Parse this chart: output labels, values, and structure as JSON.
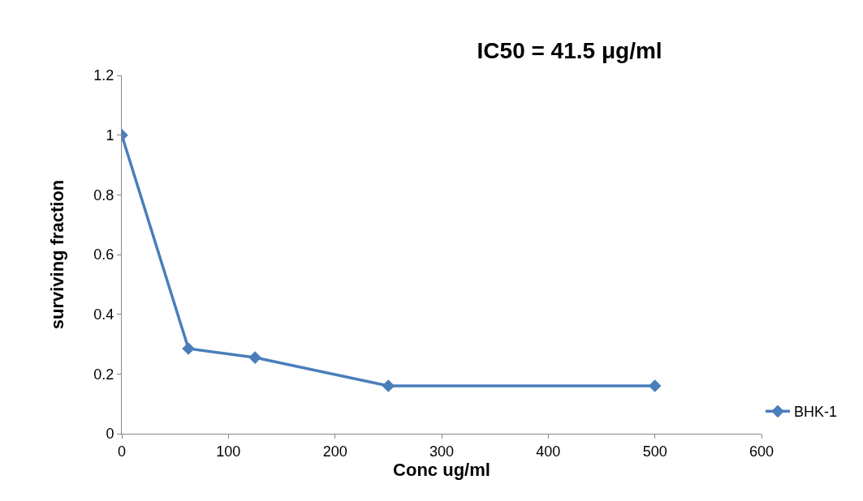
{
  "chart_data": {
    "type": "line",
    "title": "IC50 = 41.5 μg/ml",
    "xlabel": "Conc ug/ml",
    "ylabel": "surviving fraction",
    "x": [
      0,
      62.5,
      125,
      250,
      500
    ],
    "series": [
      {
        "name": "BHK-1",
        "color": "#4a7ebb",
        "values": [
          1,
          0.285,
          0.255,
          0.16,
          0.16
        ]
      }
    ],
    "xlim": [
      0,
      600
    ],
    "xticks": [
      0,
      100,
      200,
      300,
      400,
      500,
      600
    ],
    "ylim": [
      0,
      1.2
    ],
    "yticks": [
      0,
      0.2,
      0.4,
      0.6,
      0.8,
      1,
      1.2
    ],
    "legend": "right",
    "marker": "diamond",
    "line_style": "solid"
  }
}
